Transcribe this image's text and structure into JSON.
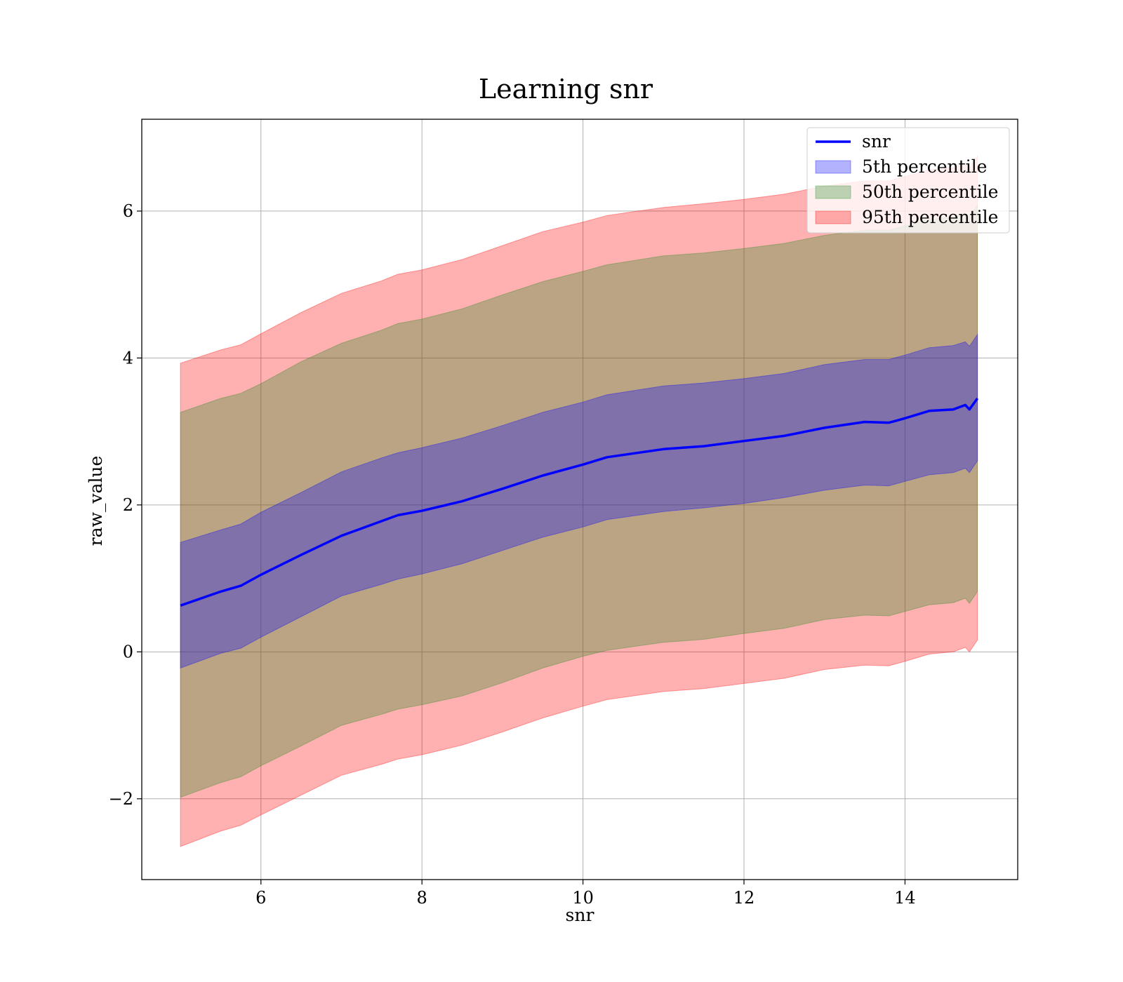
{
  "chart_data": {
    "type": "line",
    "title": "Learning snr",
    "xlabel": "snr",
    "ylabel": "raw_value",
    "xlim": [
      4.52,
      15.4
    ],
    "ylim": [
      -3.1,
      7.25
    ],
    "xticks": [
      6,
      8,
      10,
      12,
      14
    ],
    "yticks": [
      -2,
      0,
      2,
      4,
      6
    ],
    "xtick_labels": [
      "6",
      "8",
      "10",
      "12",
      "14"
    ],
    "ytick_labels": [
      "−2",
      "0",
      "2",
      "4",
      "6"
    ],
    "grid": true,
    "legend_position": "top-right",
    "x": [
      5.0,
      5.5,
      5.75,
      6.0,
      6.5,
      7.0,
      7.5,
      7.7,
      8.0,
      8.5,
      9.0,
      9.5,
      10.0,
      10.3,
      11.0,
      11.5,
      12.0,
      12.5,
      13.0,
      13.5,
      13.8,
      14.0,
      14.3,
      14.6,
      14.75,
      14.8,
      14.9
    ],
    "series": [
      {
        "name": "snr",
        "kind": "line",
        "color": "#0000ff",
        "values": [
          0.63,
          0.82,
          0.9,
          1.05,
          1.32,
          1.58,
          1.78,
          1.86,
          1.92,
          2.05,
          2.22,
          2.4,
          2.55,
          2.65,
          2.76,
          2.8,
          2.87,
          2.94,
          3.05,
          3.13,
          3.12,
          3.18,
          3.28,
          3.3,
          3.36,
          3.3,
          3.45
        ]
      },
      {
        "name": "5th percentile",
        "kind": "band",
        "color": "#0000ff",
        "lower": [
          -0.22,
          -0.02,
          0.05,
          0.2,
          0.48,
          0.76,
          0.92,
          0.99,
          1.06,
          1.2,
          1.38,
          1.56,
          1.7,
          1.8,
          1.91,
          1.96,
          2.02,
          2.1,
          2.2,
          2.27,
          2.26,
          2.32,
          2.41,
          2.44,
          2.5,
          2.44,
          2.6
        ],
        "upper": [
          1.49,
          1.66,
          1.74,
          1.9,
          2.17,
          2.45,
          2.64,
          2.71,
          2.78,
          2.91,
          3.08,
          3.26,
          3.4,
          3.5,
          3.62,
          3.66,
          3.72,
          3.79,
          3.91,
          3.98,
          3.98,
          4.04,
          4.14,
          4.17,
          4.22,
          4.16,
          4.32
        ]
      },
      {
        "name": "50th percentile",
        "kind": "band",
        "color": "#228b22",
        "lower": [
          -1.98,
          -1.78,
          -1.7,
          -1.55,
          -1.28,
          -1.0,
          -0.85,
          -0.78,
          -0.72,
          -0.6,
          -0.42,
          -0.22,
          -0.06,
          0.02,
          0.13,
          0.17,
          0.25,
          0.32,
          0.44,
          0.5,
          0.49,
          0.55,
          0.64,
          0.67,
          0.73,
          0.66,
          0.82
        ],
        "upper": [
          3.26,
          3.45,
          3.52,
          3.65,
          3.95,
          4.2,
          4.38,
          4.47,
          4.53,
          4.67,
          4.86,
          5.04,
          5.18,
          5.27,
          5.39,
          5.43,
          5.49,
          5.56,
          5.67,
          5.74,
          5.74,
          5.8,
          5.89,
          5.92,
          5.98,
          5.92,
          6.08
        ]
      },
      {
        "name": "95th percentile",
        "kind": "band",
        "color": "#ff0000",
        "lower": [
          -2.65,
          -2.44,
          -2.36,
          -2.22,
          -1.95,
          -1.68,
          -1.53,
          -1.46,
          -1.4,
          -1.27,
          -1.09,
          -0.9,
          -0.74,
          -0.65,
          -0.54,
          -0.5,
          -0.43,
          -0.36,
          -0.24,
          -0.18,
          -0.19,
          -0.13,
          -0.03,
          0.0,
          0.06,
          -0.0,
          0.16
        ],
        "upper": [
          3.93,
          4.11,
          4.18,
          4.33,
          4.62,
          4.88,
          5.05,
          5.14,
          5.2,
          5.34,
          5.53,
          5.72,
          5.85,
          5.94,
          6.05,
          6.1,
          6.16,
          6.23,
          6.34,
          6.41,
          6.41,
          6.47,
          6.56,
          6.59,
          6.65,
          6.59,
          6.75
        ]
      }
    ]
  }
}
